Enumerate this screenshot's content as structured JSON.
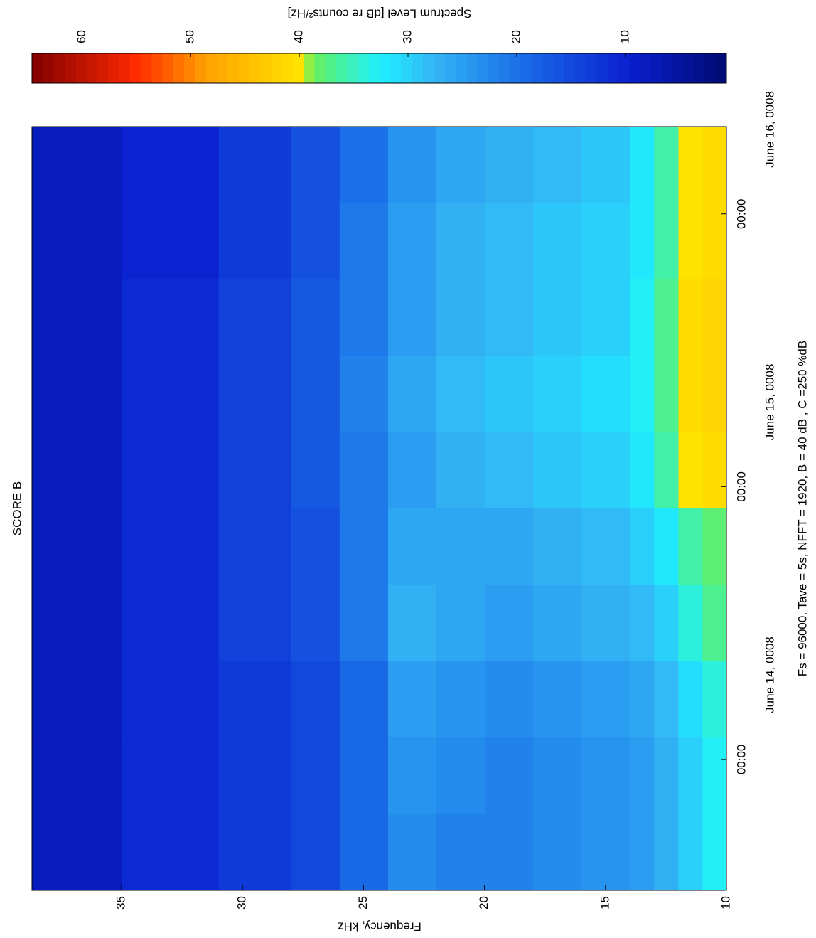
{
  "chart_data": {
    "type": "heatmap",
    "title": "SCORE B",
    "ylabel": "Frequency, kHz",
    "annotation": "Fs = 96000, Tave = 5s, NFFT = 1920, B = 40 dB , C =250 %dB",
    "colorbar_label": "Spectrum Level [dB re counts²/Hz]",
    "colormap": "jet",
    "x": [
      -0.48,
      -0.2,
      0.08,
      0.36,
      0.64,
      0.92,
      1.2,
      1.48,
      1.76,
      2.04,
      2.32
    ],
    "y": [
      10,
      11,
      12,
      13,
      14,
      16,
      18,
      20,
      22,
      24,
      26,
      28,
      31,
      35,
      38.7
    ],
    "z": [
      [
        33,
        33,
        34,
        37,
        38,
        41,
        42,
        42,
        41,
        41
      ],
      [
        30,
        30,
        31,
        34,
        36,
        40,
        41,
        41,
        40,
        40
      ],
      [
        27,
        27,
        28,
        30,
        32,
        36,
        37,
        37,
        36,
        36
      ],
      [
        25,
        25,
        26,
        28,
        30,
        32,
        33,
        33,
        32,
        32
      ],
      [
        24,
        24,
        25,
        27,
        28,
        30,
        31,
        30,
        30,
        29
      ],
      [
        23,
        23,
        24,
        26,
        27,
        29,
        30,
        29,
        29,
        28
      ],
      [
        22,
        22,
        23,
        25,
        26,
        28,
        29,
        28,
        28,
        27
      ],
      [
        22,
        23,
        24,
        26,
        26,
        27,
        28,
        27,
        27,
        26
      ],
      [
        23,
        24,
        25,
        27,
        26,
        25,
        26,
        25,
        25,
        24
      ],
      [
        19,
        19,
        19,
        21,
        21,
        21,
        22,
        21,
        21,
        20
      ],
      [
        15,
        15,
        15,
        16,
        16,
        17,
        17,
        17,
        16,
        16
      ],
      [
        13,
        13,
        13,
        14,
        14,
        14,
        14,
        14,
        13,
        13
      ],
      [
        11,
        11,
        11,
        11,
        11,
        11,
        11,
        11,
        10,
        10
      ],
      [
        8,
        8,
        8,
        8,
        8,
        8,
        8,
        8,
        8,
        8
      ]
    ],
    "xlim": [
      -0.48,
      2.32
    ],
    "xticks": [
      {
        "value": 0,
        "label": "00:00"
      },
      {
        "value": 1,
        "label": "00:00"
      },
      {
        "value": 2,
        "label": "00:00"
      }
    ],
    "xticks_secondary": [
      {
        "value": 0.31,
        "label": "June 14, 0008"
      },
      {
        "value": 1.31,
        "label": "June 15, 0008"
      },
      {
        "value": 2.31,
        "label": "June 16, 0008"
      }
    ],
    "ylim": [
      10,
      38.7
    ],
    "yticks": [
      10,
      15,
      20,
      25,
      30,
      35
    ],
    "clim": [
      0.7,
      64.6
    ],
    "cticks": [
      10,
      20,
      30,
      40,
      50,
      60
    ]
  }
}
